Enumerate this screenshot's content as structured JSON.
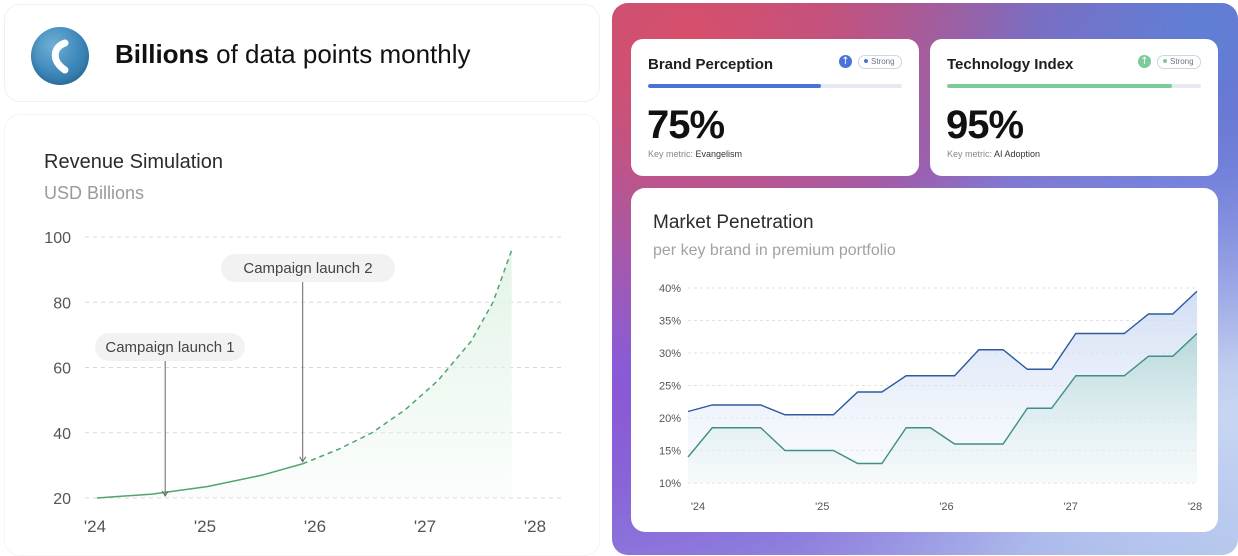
{
  "header": {
    "headline_bold": "Billions",
    "headline_rest": " of data points monthly",
    "logo_icon": "curved-stroke-logo-icon"
  },
  "revenue": {
    "title": "Revenue Simulation",
    "subtitle": "USD Billions",
    "annotations": [
      {
        "label": "Campaign launch 1",
        "x": 0.62,
        "y": 20
      },
      {
        "label": "Campaign launch 2",
        "x": 1.87,
        "y": 30.5
      }
    ]
  },
  "metrics": [
    {
      "title": "Brand Perception",
      "badge": "Strong",
      "value": "75%",
      "progress": 0.68,
      "key_label": "Key metric: ",
      "key_value": "Evangelism",
      "accent": "#4a73d9",
      "icon": "up-arrow-icon"
    },
    {
      "title": "Technology Index",
      "badge": "Strong",
      "value": "95%",
      "progress": 0.885,
      "key_label": "Key metric: ",
      "key_value": "AI Adoption",
      "accent": "#7ccb9a",
      "icon": "up-arrow-icon"
    }
  ],
  "market": {
    "title": "Market Penetration",
    "subtitle": "per key brand in premium portfolio"
  },
  "colors": {
    "revenue_line": "#4fa56f",
    "revenue_fill": "#e4f4e8",
    "market_upper": "#2e5a9e",
    "market_lower": "#3f8f86"
  },
  "chart_data": [
    {
      "type": "area",
      "title": "Revenue Simulation",
      "subtitle": "USD Billions",
      "x_ticks": [
        "'24",
        "'25",
        "'26",
        "'27",
        "'28"
      ],
      "ylim": [
        20,
        100
      ],
      "y_ticks": [
        100,
        80,
        60,
        40,
        20
      ],
      "grid": true,
      "x_values": [
        0,
        0.5,
        1,
        1.5,
        1.87,
        2.2,
        2.5,
        2.8,
        3.1,
        3.4,
        3.6,
        3.77
      ],
      "y_values": [
        20,
        21.2,
        23.5,
        27,
        30.5,
        35,
        40,
        47,
        56,
        68,
        80,
        96
      ],
      "solid_until_x": 1.87,
      "annotations": [
        "Campaign launch 1",
        "Campaign launch 2"
      ]
    },
    {
      "type": "area",
      "title": "Market Penetration",
      "subtitle": "per key brand in premium portfolio",
      "x_ticks": [
        "'24",
        "'25",
        "'26",
        "'27",
        "'28"
      ],
      "y_ticks": [
        "40%",
        "35%",
        "30%",
        "25%",
        "20%",
        "15%",
        "10%"
      ],
      "ylim": [
        10,
        40
      ],
      "grid": true,
      "series": [
        {
          "values": [
            21,
            22,
            22,
            22,
            20.5,
            20.5,
            20.5,
            24,
            24,
            26.5,
            26.5,
            26.5,
            30.5,
            30.5,
            27.5,
            27.5,
            33,
            33,
            33,
            36,
            36,
            39.5
          ]
        },
        {
          "values": [
            14,
            18.5,
            18.5,
            18.5,
            15,
            15,
            15,
            13,
            13,
            18.5,
            18.5,
            16,
            16,
            16,
            21.5,
            21.5,
            26.5,
            26.5,
            26.5,
            29.5,
            29.5,
            33
          ]
        }
      ]
    }
  ]
}
